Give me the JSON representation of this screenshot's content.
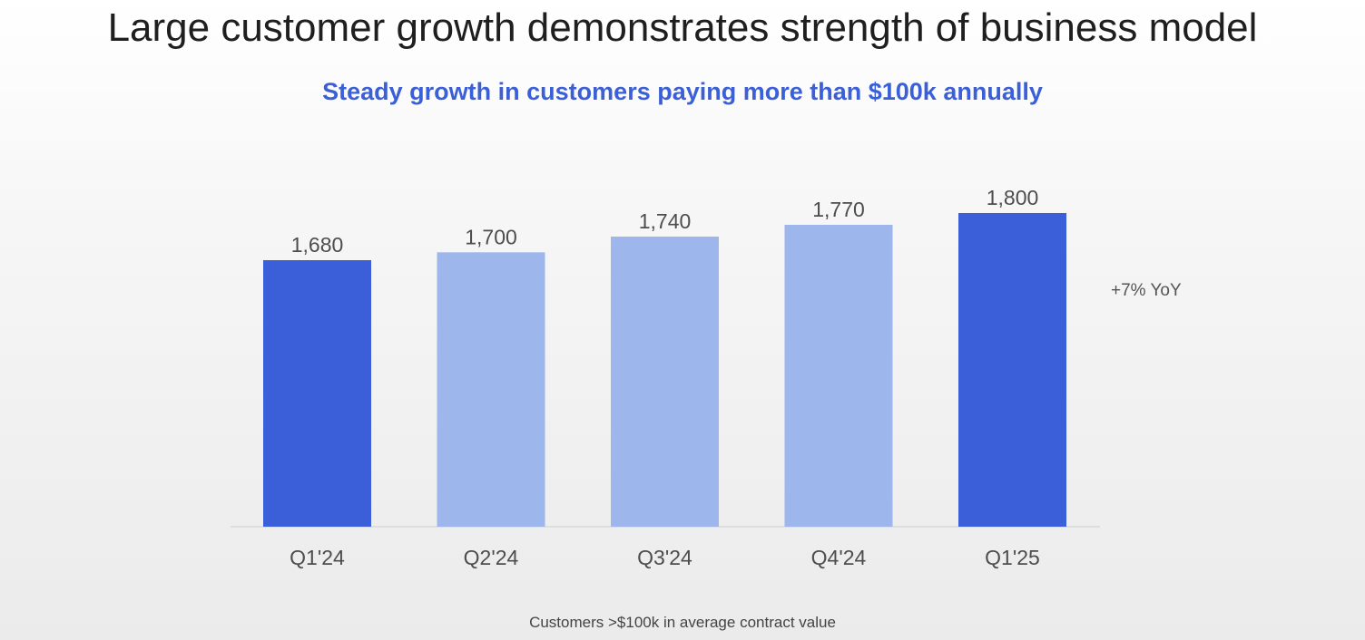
{
  "slide": {
    "title": "Large customer growth demonstrates strength of business model",
    "subtitle": "Steady growth in customers paying more than $100k annually",
    "yoy_annotation": "+7% YoY",
    "footnote": "Customers >$100k in average contract value"
  },
  "colors": {
    "title": "#1f1f1f",
    "subtitle": "#3a5fd6",
    "bar_highlight": "#3b5fd9",
    "bar_normal": "#9db6ec",
    "axis_line": "#d9d9d9",
    "label_text": "#4d4d4d"
  },
  "chart_data": {
    "type": "bar",
    "title": "",
    "xlabel": "",
    "ylabel": "",
    "categories": [
      "Q1'24",
      "Q2'24",
      "Q3'24",
      "Q4'24",
      "Q1'25"
    ],
    "values": [
      1680,
      1700,
      1740,
      1770,
      1800
    ],
    "value_labels": [
      "1,680",
      "1,700",
      "1,740",
      "1,770",
      "1,800"
    ],
    "highlighted": [
      true,
      false,
      false,
      false,
      true
    ],
    "grid": false,
    "legend": "none"
  }
}
